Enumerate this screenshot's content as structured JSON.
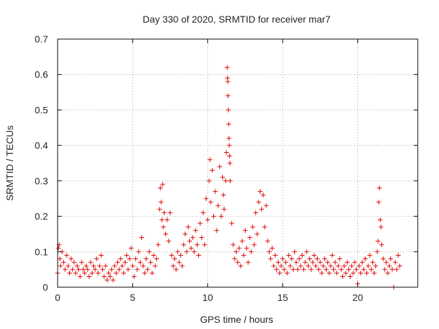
{
  "chart_data": {
    "type": "scatter",
    "title": "Day 330 of 2020, SRMTID for receiver mar7",
    "xlabel": "GPS time / hours",
    "ylabel": "SRMTID / TECUs",
    "xlim": [
      0,
      24
    ],
    "ylim": [
      0,
      0.7
    ],
    "x_ticks": [
      0,
      5,
      10,
      15,
      20
    ],
    "y_ticks": [
      0,
      0.1,
      0.2,
      0.3,
      0.4,
      0.5,
      0.6,
      0.7
    ],
    "x_tick_labels": [
      "0",
      "5",
      "10",
      "15",
      "20"
    ],
    "y_tick_labels": [
      "0",
      "0.1",
      "0.2",
      "0.3",
      "0.4",
      "0.5",
      "0.6",
      "0.7"
    ],
    "grid": true,
    "marker": "+",
    "marker_color": "#e00000",
    "series": [
      {
        "name": "SRMTID",
        "points": [
          [
            0.0,
            0.04
          ],
          [
            0.05,
            0.11
          ],
          [
            0.1,
            0.12
          ],
          [
            0.15,
            0.08
          ],
          [
            0.2,
            0.06
          ],
          [
            0.3,
            0.1
          ],
          [
            0.4,
            0.07
          ],
          [
            0.5,
            0.05
          ],
          [
            0.6,
            0.09
          ],
          [
            0.7,
            0.06
          ],
          [
            0.8,
            0.04
          ],
          [
            0.9,
            0.08
          ],
          [
            1.0,
            0.05
          ],
          [
            1.1,
            0.07
          ],
          [
            1.2,
            0.04
          ],
          [
            1.3,
            0.06
          ],
          [
            1.4,
            0.05
          ],
          [
            1.5,
            0.03
          ],
          [
            1.6,
            0.07
          ],
          [
            1.7,
            0.05
          ],
          [
            1.8,
            0.04
          ],
          [
            1.9,
            0.06
          ],
          [
            2.0,
            0.05
          ],
          [
            2.1,
            0.03
          ],
          [
            2.2,
            0.07
          ],
          [
            2.3,
            0.04
          ],
          [
            2.4,
            0.06
          ],
          [
            2.5,
            0.05
          ],
          [
            2.6,
            0.08
          ],
          [
            2.7,
            0.04
          ],
          [
            2.8,
            0.06
          ],
          [
            2.9,
            0.09
          ],
          [
            3.0,
            0.05
          ],
          [
            3.1,
            0.03
          ],
          [
            3.2,
            0.06
          ],
          [
            3.3,
            0.02
          ],
          [
            3.4,
            0.04
          ],
          [
            3.5,
            0.03
          ],
          [
            3.6,
            0.05
          ],
          [
            3.7,
            0.02
          ],
          [
            3.8,
            0.06
          ],
          [
            3.9,
            0.04
          ],
          [
            4.0,
            0.07
          ],
          [
            4.1,
            0.05
          ],
          [
            4.2,
            0.08
          ],
          [
            4.3,
            0.06
          ],
          [
            4.4,
            0.04
          ],
          [
            4.5,
            0.07
          ],
          [
            4.6,
            0.09
          ],
          [
            4.7,
            0.05
          ],
          [
            4.8,
            0.08
          ],
          [
            4.9,
            0.11
          ],
          [
            5.0,
            0.06
          ],
          [
            5.1,
            0.03
          ],
          [
            5.2,
            0.08
          ],
          [
            5.3,
            0.05
          ],
          [
            5.4,
            0.1
          ],
          [
            5.5,
            0.07
          ],
          [
            5.6,
            0.14
          ],
          [
            5.7,
            0.06
          ],
          [
            5.8,
            0.04
          ],
          [
            5.9,
            0.08
          ],
          [
            6.0,
            0.05
          ],
          [
            6.1,
            0.1
          ],
          [
            6.2,
            0.07
          ],
          [
            6.3,
            0.04
          ],
          [
            6.4,
            0.09
          ],
          [
            6.5,
            0.06
          ],
          [
            6.6,
            0.08
          ],
          [
            6.7,
            0.12
          ],
          [
            6.8,
            0.22
          ],
          [
            6.85,
            0.28
          ],
          [
            6.9,
            0.24
          ],
          [
            6.95,
            0.19
          ],
          [
            7.0,
            0.29
          ],
          [
            7.05,
            0.17
          ],
          [
            7.1,
            0.21
          ],
          [
            7.2,
            0.15
          ],
          [
            7.3,
            0.19
          ],
          [
            7.4,
            0.13
          ],
          [
            7.5,
            0.21
          ],
          [
            7.6,
            0.09
          ],
          [
            7.7,
            0.06
          ],
          [
            7.8,
            0.08
          ],
          [
            7.9,
            0.05
          ],
          [
            8.0,
            0.1
          ],
          [
            8.1,
            0.07
          ],
          [
            8.2,
            0.09
          ],
          [
            8.3,
            0.06
          ],
          [
            8.4,
            0.12
          ],
          [
            8.5,
            0.15
          ],
          [
            8.6,
            0.1
          ],
          [
            8.7,
            0.17
          ],
          [
            8.8,
            0.13
          ],
          [
            8.9,
            0.11
          ],
          [
            9.0,
            0.14
          ],
          [
            9.1,
            0.1
          ],
          [
            9.2,
            0.16
          ],
          [
            9.3,
            0.12
          ],
          [
            9.4,
            0.09
          ],
          [
            9.5,
            0.18
          ],
          [
            9.6,
            0.14
          ],
          [
            9.7,
            0.21
          ],
          [
            9.8,
            0.12
          ],
          [
            9.9,
            0.25
          ],
          [
            10.0,
            0.19
          ],
          [
            10.1,
            0.3
          ],
          [
            10.15,
            0.36
          ],
          [
            10.2,
            0.24
          ],
          [
            10.3,
            0.33
          ],
          [
            10.4,
            0.2
          ],
          [
            10.5,
            0.27
          ],
          [
            10.6,
            0.16
          ],
          [
            10.7,
            0.23
          ],
          [
            10.8,
            0.34
          ],
          [
            10.9,
            0.2
          ],
          [
            11.0,
            0.31
          ],
          [
            11.05,
            0.26
          ],
          [
            11.1,
            0.22
          ],
          [
            11.2,
            0.3
          ],
          [
            11.25,
            0.38
          ],
          [
            11.3,
            0.62
          ],
          [
            11.32,
            0.59
          ],
          [
            11.34,
            0.58
          ],
          [
            11.36,
            0.54
          ],
          [
            11.38,
            0.5
          ],
          [
            11.4,
            0.46
          ],
          [
            11.42,
            0.42
          ],
          [
            11.44,
            0.4
          ],
          [
            11.46,
            0.37
          ],
          [
            11.48,
            0.35
          ],
          [
            11.5,
            0.3
          ],
          [
            11.6,
            0.18
          ],
          [
            11.7,
            0.12
          ],
          [
            11.8,
            0.08
          ],
          [
            11.9,
            0.1
          ],
          [
            12.0,
            0.07
          ],
          [
            12.1,
            0.11
          ],
          [
            12.2,
            0.06
          ],
          [
            12.3,
            0.13
          ],
          [
            12.4,
            0.09
          ],
          [
            12.5,
            0.16
          ],
          [
            12.6,
            0.11
          ],
          [
            12.7,
            0.07
          ],
          [
            12.8,
            0.14
          ],
          [
            12.9,
            0.1
          ],
          [
            13.0,
            0.17
          ],
          [
            13.1,
            0.12
          ],
          [
            13.2,
            0.21
          ],
          [
            13.3,
            0.15
          ],
          [
            13.4,
            0.24
          ],
          [
            13.5,
            0.27
          ],
          [
            13.6,
            0.22
          ],
          [
            13.7,
            0.26
          ],
          [
            13.8,
            0.17
          ],
          [
            13.9,
            0.23
          ],
          [
            14.0,
            0.13
          ],
          [
            14.1,
            0.1
          ],
          [
            14.2,
            0.08
          ],
          [
            14.3,
            0.11
          ],
          [
            14.4,
            0.06
          ],
          [
            14.5,
            0.09
          ],
          [
            14.6,
            0.05
          ],
          [
            14.7,
            0.07
          ],
          [
            14.8,
            0.04
          ],
          [
            14.9,
            0.06
          ],
          [
            15.0,
            0.08
          ],
          [
            15.1,
            0.05
          ],
          [
            15.2,
            0.07
          ],
          [
            15.3,
            0.04
          ],
          [
            15.4,
            0.09
          ],
          [
            15.5,
            0.06
          ],
          [
            15.6,
            0.08
          ],
          [
            15.7,
            0.05
          ],
          [
            15.8,
            0.1
          ],
          [
            15.9,
            0.07
          ],
          [
            16.0,
            0.05
          ],
          [
            16.1,
            0.08
          ],
          [
            16.2,
            0.06
          ],
          [
            16.3,
            0.09
          ],
          [
            16.4,
            0.05
          ],
          [
            16.5,
            0.07
          ],
          [
            16.6,
            0.1
          ],
          [
            16.7,
            0.06
          ],
          [
            16.8,
            0.08
          ],
          [
            16.9,
            0.05
          ],
          [
            17.0,
            0.07
          ],
          [
            17.1,
            0.09
          ],
          [
            17.2,
            0.06
          ],
          [
            17.3,
            0.08
          ],
          [
            17.4,
            0.05
          ],
          [
            17.5,
            0.07
          ],
          [
            17.6,
            0.04
          ],
          [
            17.7,
            0.06
          ],
          [
            17.8,
            0.08
          ],
          [
            17.9,
            0.05
          ],
          [
            18.0,
            0.07
          ],
          [
            18.1,
            0.04
          ],
          [
            18.2,
            0.06
          ],
          [
            18.3,
            0.09
          ],
          [
            18.4,
            0.05
          ],
          [
            18.5,
            0.07
          ],
          [
            18.6,
            0.04
          ],
          [
            18.7,
            0.06
          ],
          [
            18.8,
            0.08
          ],
          [
            18.9,
            0.05
          ],
          [
            19.0,
            0.03
          ],
          [
            19.1,
            0.06
          ],
          [
            19.2,
            0.04
          ],
          [
            19.3,
            0.07
          ],
          [
            19.4,
            0.05
          ],
          [
            19.5,
            0.03
          ],
          [
            19.6,
            0.06
          ],
          [
            19.7,
            0.04
          ],
          [
            19.8,
            0.07
          ],
          [
            19.9,
            0.05
          ],
          [
            20.0,
            0.01
          ],
          [
            20.1,
            0.06
          ],
          [
            20.2,
            0.04
          ],
          [
            20.3,
            0.07
          ],
          [
            20.4,
            0.05
          ],
          [
            20.5,
            0.08
          ],
          [
            20.6,
            0.04
          ],
          [
            20.7,
            0.06
          ],
          [
            20.8,
            0.09
          ],
          [
            20.9,
            0.05
          ],
          [
            21.0,
            0.07
          ],
          [
            21.1,
            0.04
          ],
          [
            21.2,
            0.06
          ],
          [
            21.3,
            0.1
          ],
          [
            21.35,
            0.13
          ],
          [
            21.4,
            0.24
          ],
          [
            21.45,
            0.28
          ],
          [
            21.5,
            0.19
          ],
          [
            21.55,
            0.17
          ],
          [
            21.6,
            0.12
          ],
          [
            21.7,
            0.08
          ],
          [
            21.8,
            0.05
          ],
          [
            21.9,
            0.07
          ],
          [
            22.0,
            0.04
          ],
          [
            22.1,
            0.06
          ],
          [
            22.2,
            0.08
          ],
          [
            22.3,
            0.05
          ],
          [
            22.4,
            0.0
          ],
          [
            22.5,
            0.07
          ],
          [
            22.6,
            0.05
          ],
          [
            22.7,
            0.09
          ],
          [
            22.8,
            0.06
          ]
        ]
      }
    ]
  }
}
